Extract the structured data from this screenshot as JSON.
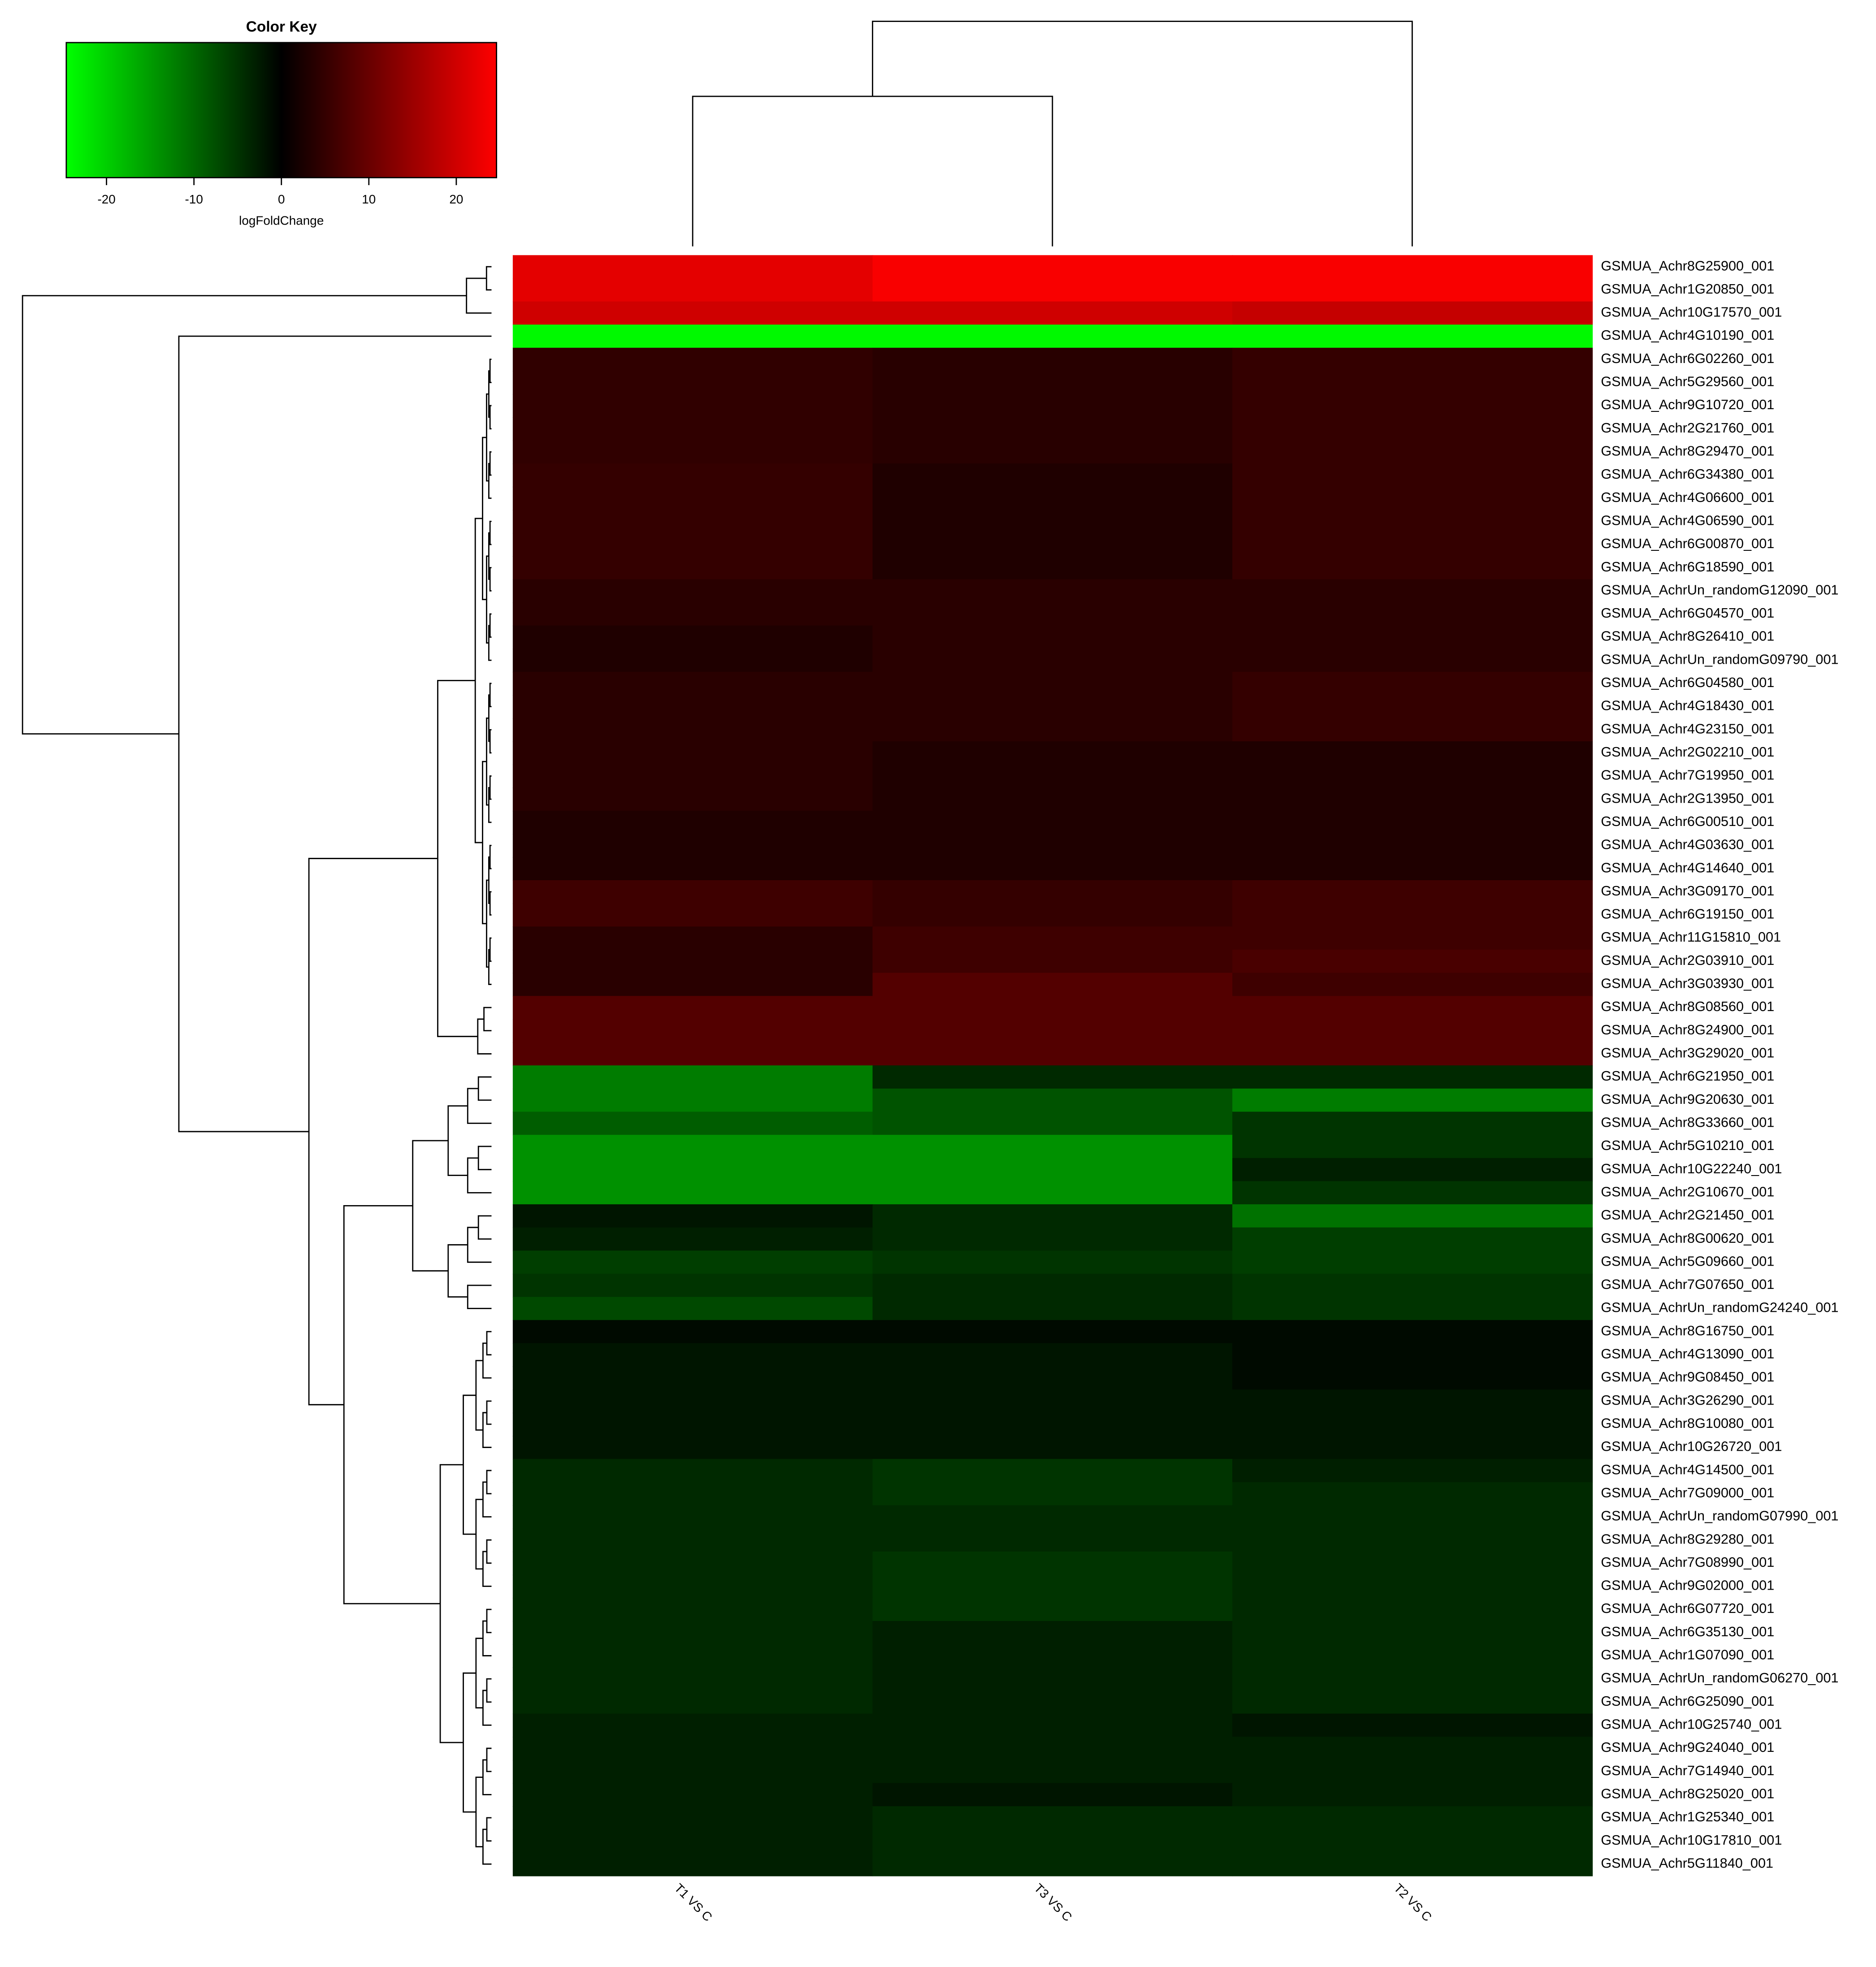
{
  "chart_data": {
    "type": "heatmap",
    "key_title": "Color Key",
    "key_xlabel": "logFoldChange",
    "zlim": [
      -24.6,
      24.6
    ],
    "zticks": [
      -20,
      -10,
      0,
      10,
      20
    ],
    "colors": [
      "#00ff00",
      "#000000",
      "#ff0000"
    ],
    "columns": [
      "T1 VS C",
      "T3 VS C",
      "T2 VS C"
    ],
    "rows": [
      "GSMUA_Achr8G25900_001",
      "GSMUA_Achr1G20850_001",
      "GSMUA_Achr10G17570_001",
      "GSMUA_Achr4G10190_001",
      "GSMUA_Achr6G02260_001",
      "GSMUA_Achr5G29560_001",
      "GSMUA_Achr9G10720_001",
      "GSMUA_Achr2G21760_001",
      "GSMUA_Achr8G29470_001",
      "GSMUA_Achr6G34380_001",
      "GSMUA_Achr4G06600_001",
      "GSMUA_Achr4G06590_001",
      "GSMUA_Achr6G00870_001",
      "GSMUA_Achr6G18590_001",
      "GSMUA_AchrUn_randomG12090_001",
      "GSMUA_Achr6G04570_001",
      "GSMUA_Achr8G26410_001",
      "GSMUA_AchrUn_randomG09790_001",
      "GSMUA_Achr6G04580_001",
      "GSMUA_Achr4G18430_001",
      "GSMUA_Achr4G23150_001",
      "GSMUA_Achr2G02210_001",
      "GSMUA_Achr7G19950_001",
      "GSMUA_Achr2G13950_001",
      "GSMUA_Achr6G00510_001",
      "GSMUA_Achr4G03630_001",
      "GSMUA_Achr4G14640_001",
      "GSMUA_Achr3G09170_001",
      "GSMUA_Achr6G19150_001",
      "GSMUA_Achr11G15810_001",
      "GSMUA_Achr2G03910_001",
      "GSMUA_Achr3G03930_001",
      "GSMUA_Achr8G08560_001",
      "GSMUA_Achr8G24900_001",
      "GSMUA_Achr3G29020_001",
      "GSMUA_Achr6G21950_001",
      "GSMUA_Achr9G20630_001",
      "GSMUA_Achr8G33660_001",
      "GSMUA_Achr5G10210_001",
      "GSMUA_Achr10G22240_001",
      "GSMUA_Achr2G10670_001",
      "GSMUA_Achr2G21450_001",
      "GSMUA_Achr8G00620_001",
      "GSMUA_Achr5G09660_001",
      "GSMUA_Achr7G07650_001",
      "GSMUA_AchrUn_randomG24240_001",
      "GSMUA_Achr8G16750_001",
      "GSMUA_Achr4G13090_001",
      "GSMUA_Achr9G08450_001",
      "GSMUA_Achr3G26290_001",
      "GSMUA_Achr8G10080_001",
      "GSMUA_Achr10G26720_001",
      "GSMUA_Achr4G14500_001",
      "GSMUA_Achr7G09000_001",
      "GSMUA_AchrUn_randomG07990_001",
      "GSMUA_Achr8G29280_001",
      "GSMUA_Achr7G08990_001",
      "GSMUA_Achr9G02000_001",
      "GSMUA_Achr6G07720_001",
      "GSMUA_Achr6G35130_001",
      "GSMUA_Achr1G07090_001",
      "GSMUA_AchrUn_randomG06270_001",
      "GSMUA_Achr6G25090_001",
      "GSMUA_Achr10G25740_001",
      "GSMUA_Achr9G24040_001",
      "GSMUA_Achr7G14940_001",
      "GSMUA_Achr8G25020_001",
      "GSMUA_Achr1G25340_001",
      "GSMUA_Achr10G17810_001",
      "GSMUA_Achr5G11840_001"
    ],
    "values": [
      [
        22,
        24,
        24
      ],
      [
        22,
        24,
        24
      ],
      [
        20,
        20,
        19
      ],
      [
        -24,
        -24,
        -24
      ],
      [
        4.6,
        3.9,
        5
      ],
      [
        4.6,
        3.9,
        5
      ],
      [
        4.6,
        3.9,
        5
      ],
      [
        4.6,
        3.9,
        5
      ],
      [
        4.6,
        3.9,
        5
      ],
      [
        5,
        3,
        5
      ],
      [
        5,
        3,
        5
      ],
      [
        5,
        3,
        5
      ],
      [
        5,
        3,
        5
      ],
      [
        5,
        3,
        5
      ],
      [
        4,
        4,
        4
      ],
      [
        4,
        4,
        4
      ],
      [
        3,
        4,
        4
      ],
      [
        3,
        4,
        4
      ],
      [
        4,
        4,
        5
      ],
      [
        4,
        4,
        5
      ],
      [
        4,
        4,
        5
      ],
      [
        4,
        3,
        3
      ],
      [
        4,
        3,
        3
      ],
      [
        4,
        3,
        3
      ],
      [
        3,
        3,
        3
      ],
      [
        3,
        3,
        3
      ],
      [
        3,
        3,
        3
      ],
      [
        6,
        5,
        6
      ],
      [
        6,
        5,
        6
      ],
      [
        4,
        6,
        6
      ],
      [
        4,
        6,
        7
      ],
      [
        4,
        8,
        6
      ],
      [
        8,
        8,
        8
      ],
      [
        8,
        8,
        8
      ],
      [
        8,
        8,
        8
      ],
      [
        -12,
        -4,
        -4
      ],
      [
        -12,
        -8,
        -12
      ],
      [
        -9,
        -8,
        -5
      ],
      [
        -14,
        -14,
        -5
      ],
      [
        -14,
        -14,
        -3
      ],
      [
        -14,
        -14,
        -5
      ],
      [
        -2,
        -4,
        -11
      ],
      [
        -3,
        -4,
        -6
      ],
      [
        -6,
        -5,
        -6
      ],
      [
        -5,
        -4,
        -5
      ],
      [
        -7,
        -4,
        -5
      ],
      [
        -1,
        -1,
        -1
      ],
      [
        -2,
        -2,
        -1
      ],
      [
        -2,
        -2,
        -1
      ],
      [
        -2,
        -2,
        -2
      ],
      [
        -2,
        -2,
        -2
      ],
      [
        -2,
        -2,
        -2
      ],
      [
        -4,
        -5,
        -3
      ],
      [
        -4,
        -5,
        -4
      ],
      [
        -4,
        -4,
        -4
      ],
      [
        -4,
        -4,
        -4
      ],
      [
        -4,
        -5,
        -4
      ],
      [
        -4,
        -5,
        -4
      ],
      [
        -4,
        -5,
        -4
      ],
      [
        -4,
        -3,
        -4
      ],
      [
        -4,
        -3,
        -4
      ],
      [
        -4,
        -3,
        -4
      ],
      [
        -4,
        -3,
        -4
      ],
      [
        -3,
        -3,
        -2
      ],
      [
        -3,
        -3,
        -3
      ],
      [
        -3,
        -3,
        -3
      ],
      [
        -3,
        -2,
        -3
      ],
      [
        -3,
        -4,
        -4
      ],
      [
        -3,
        -4,
        -4
      ],
      [
        -3,
        -4,
        -4
      ]
    ]
  }
}
